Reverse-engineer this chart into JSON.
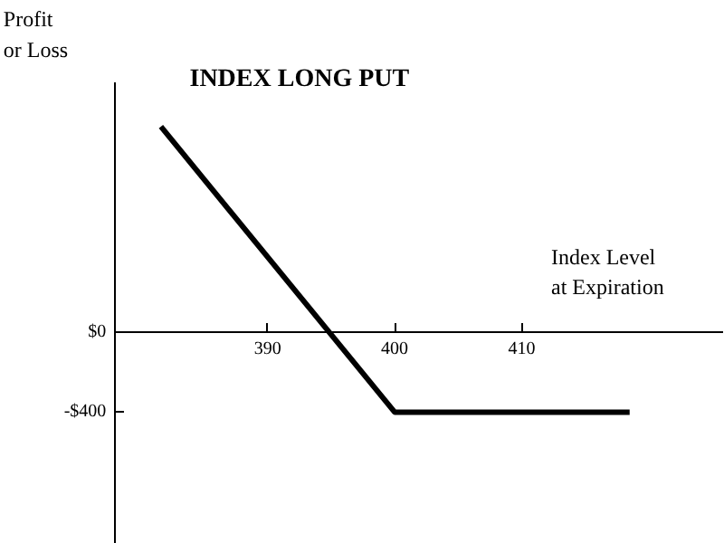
{
  "chart_data": {
    "type": "line",
    "title": "INDEX LONG PUT",
    "xlabel": "Index Level\nat Expiration",
    "ylabel": "Profit\nor Loss",
    "series": [
      {
        "color": "#000000",
        "x": [
          381.6,
          400,
          418.5
        ],
        "values": [
          1030,
          -400,
          -400
        ]
      }
    ],
    "xlim": [
      369,
      426
    ],
    "ylim": [
      -1060,
      1660
    ],
    "xticks": [
      390,
      400,
      410
    ],
    "yticks": [
      {
        "value": 0,
        "label": "$0"
      },
      {
        "value": -400,
        "label": "-$400"
      }
    ],
    "grid": false,
    "marker": "none",
    "line_style": "solid"
  }
}
